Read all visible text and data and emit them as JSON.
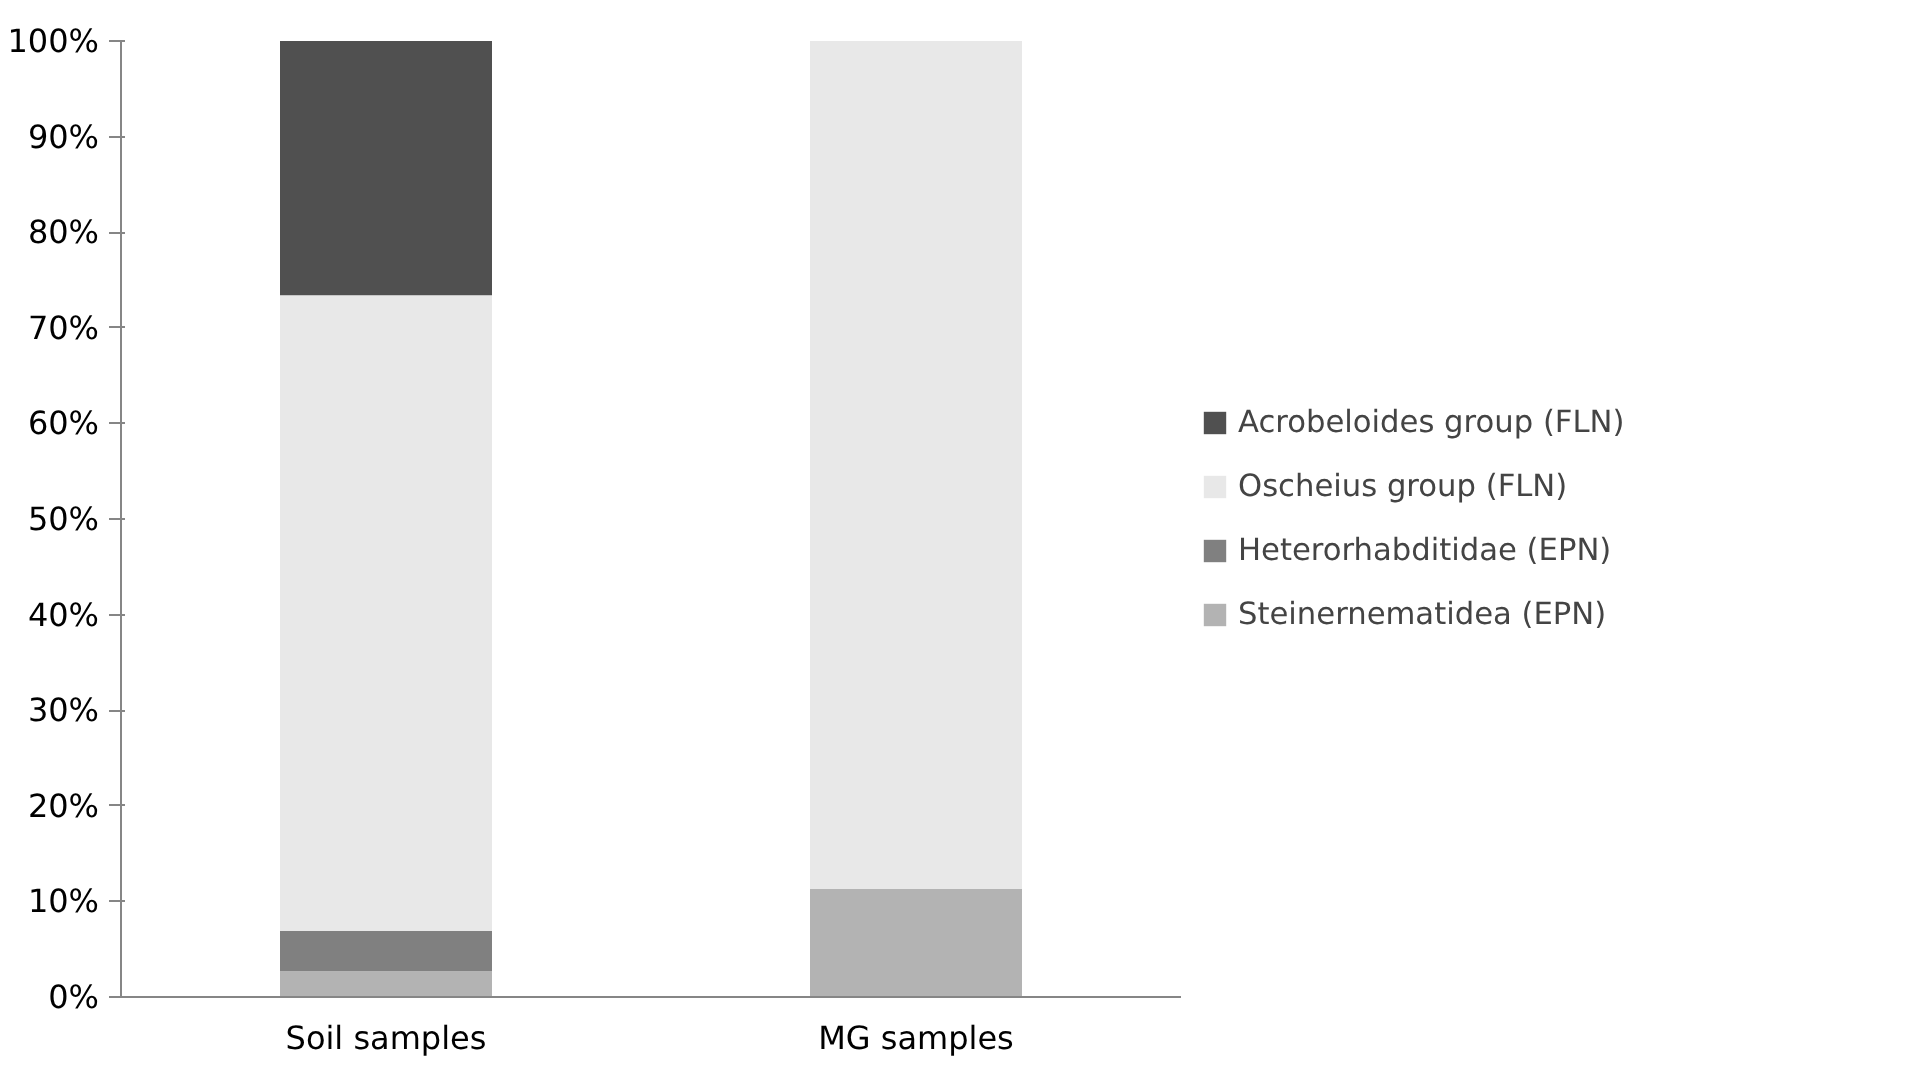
{
  "chart_data": {
    "type": "bar",
    "stacked": true,
    "categories": [
      "Soil samples",
      "MG samples"
    ],
    "series": [
      {
        "name": "Steinernematidea (EPN)",
        "color": "#b3b3b3",
        "values": [
          2.7,
          11.3
        ]
      },
      {
        "name": "Heterorhabditidae (EPN)",
        "color": "#808080",
        "values": [
          4.2,
          0
        ]
      },
      {
        "name": "Oscheius group (FLN)",
        "color": "#e8e8e8",
        "values": [
          66.5,
          88.7
        ]
      },
      {
        "name": "Acrobeloides group (FLN)",
        "color": "#505050",
        "values": [
          26.6,
          0
        ]
      }
    ],
    "ylim": [
      0,
      100
    ],
    "yticks": [
      {
        "value": 0,
        "label": "0%"
      },
      {
        "value": 10,
        "label": "10%"
      },
      {
        "value": 20,
        "label": "20%"
      },
      {
        "value": 30,
        "label": "30%"
      },
      {
        "value": 40,
        "label": "40%"
      },
      {
        "value": 50,
        "label": "50%"
      },
      {
        "value": 60,
        "label": "60%"
      },
      {
        "value": 70,
        "label": "70%"
      },
      {
        "value": 80,
        "label": "80%"
      },
      {
        "value": 90,
        "label": "90%"
      },
      {
        "value": 100,
        "label": "100%"
      }
    ],
    "grid": false,
    "legend": "right"
  }
}
